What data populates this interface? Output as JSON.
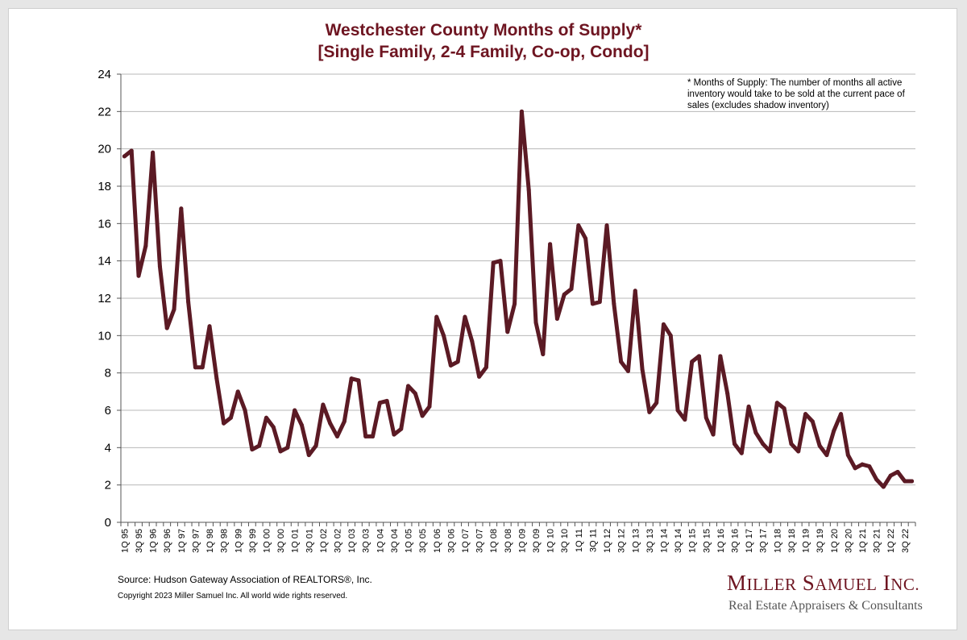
{
  "chart_data": {
    "type": "line",
    "title": "Westchester County Months of Supply*",
    "subtitle": "[Single Family, 2-4 Family, Co-op, Condo]",
    "xlabel": "",
    "ylabel": "",
    "ylim": [
      0,
      24
    ],
    "yticks": [
      0,
      2,
      4,
      6,
      8,
      10,
      12,
      14,
      16,
      18,
      20,
      22,
      24
    ],
    "grid": true,
    "legend": "none",
    "line_color": "#5b1a24",
    "tick_labels": [
      "1Q 95",
      "3Q 95",
      "1Q 96",
      "3Q 96",
      "1Q 97",
      "3Q 97",
      "1Q 98",
      "3Q 98",
      "1Q 99",
      "3Q 99",
      "1Q 00",
      "3Q 00",
      "1Q 01",
      "3Q 01",
      "1Q 02",
      "3Q 02",
      "1Q 03",
      "3Q 03",
      "1Q 04",
      "3Q 04",
      "1Q 05",
      "3Q 05",
      "1Q 06",
      "3Q 06",
      "1Q 07",
      "3Q 07",
      "1Q 08",
      "3Q 08",
      "1Q 09",
      "3Q 09",
      "1Q 10",
      "3Q 10",
      "1Q 11",
      "3Q 11",
      "1Q 12",
      "3Q 12",
      "1Q 13",
      "3Q 13",
      "1Q 14",
      "3Q 14",
      "1Q 15",
      "3Q 15",
      "1Q 16",
      "3Q 16",
      "1Q 17",
      "3Q 17",
      "1Q 18",
      "3Q 18",
      "1Q 19",
      "3Q 19",
      "1Q 20",
      "3Q 20",
      "1Q 21",
      "3Q 21",
      "1Q 22",
      "3Q 22"
    ],
    "categories": [
      "1Q 95",
      "2Q 95",
      "3Q 95",
      "4Q 95",
      "1Q 96",
      "2Q 96",
      "3Q 96",
      "4Q 96",
      "1Q 97",
      "2Q 97",
      "3Q 97",
      "4Q 97",
      "1Q 98",
      "2Q 98",
      "3Q 98",
      "4Q 98",
      "1Q 99",
      "2Q 99",
      "3Q 99",
      "4Q 99",
      "1Q 00",
      "2Q 00",
      "3Q 00",
      "4Q 00",
      "1Q 01",
      "2Q 01",
      "3Q 01",
      "4Q 01",
      "1Q 02",
      "2Q 02",
      "3Q 02",
      "4Q 02",
      "1Q 03",
      "2Q 03",
      "3Q 03",
      "4Q 03",
      "1Q 04",
      "2Q 04",
      "3Q 04",
      "4Q 04",
      "1Q 05",
      "2Q 05",
      "3Q 05",
      "4Q 05",
      "1Q 06",
      "2Q 06",
      "3Q 06",
      "4Q 06",
      "1Q 07",
      "2Q 07",
      "3Q 07",
      "4Q 07",
      "1Q 08",
      "2Q 08",
      "3Q 08",
      "4Q 08",
      "1Q 09",
      "2Q 09",
      "3Q 09",
      "4Q 09",
      "1Q 10",
      "2Q 10",
      "3Q 10",
      "4Q 10",
      "1Q 11",
      "2Q 11",
      "3Q 11",
      "4Q 11",
      "1Q 12",
      "2Q 12",
      "3Q 12",
      "4Q 12",
      "1Q 13",
      "2Q 13",
      "3Q 13",
      "4Q 13",
      "1Q 14",
      "2Q 14",
      "3Q 14",
      "4Q 14",
      "1Q 15",
      "2Q 15",
      "3Q 15",
      "4Q 15",
      "1Q 16",
      "2Q 16",
      "3Q 16",
      "4Q 16",
      "1Q 17",
      "2Q 17",
      "3Q 17",
      "4Q 17",
      "1Q 18",
      "2Q 18",
      "3Q 18",
      "4Q 18",
      "1Q 19",
      "2Q 19",
      "3Q 19",
      "4Q 19",
      "1Q 20",
      "2Q 20",
      "3Q 20",
      "4Q 20",
      "1Q 21",
      "2Q 21",
      "3Q 21",
      "4Q 21",
      "1Q 22",
      "2Q 22",
      "3Q 22",
      "4Q 22"
    ],
    "series": [
      {
        "values": [
          19.6,
          19.9,
          13.2,
          14.8,
          19.8,
          13.7,
          10.4,
          11.4,
          16.8,
          11.8,
          8.3,
          8.3,
          10.5,
          7.7,
          5.3,
          5.6,
          7.0,
          6.0,
          3.9,
          4.1,
          5.6,
          5.1,
          3.8,
          4.0,
          6.0,
          5.2,
          3.6,
          4.1,
          6.3,
          5.3,
          4.6,
          5.4,
          7.7,
          7.6,
          4.6,
          4.6,
          6.4,
          6.5,
          4.7,
          5.0,
          7.3,
          6.9,
          5.7,
          6.2,
          11.0,
          10.0,
          8.4,
          8.6,
          11.0,
          9.7,
          7.8,
          8.3,
          13.9,
          14.0,
          10.2,
          11.7,
          22.0,
          17.8,
          10.7,
          9.0,
          14.9,
          10.9,
          12.2,
          12.5,
          15.9,
          15.2,
          11.7,
          11.8,
          15.9,
          11.7,
          8.6,
          8.1,
          12.4,
          8.2,
          5.9,
          6.4,
          10.6,
          10.0,
          6.0,
          5.5,
          8.6,
          8.9,
          5.6,
          4.7,
          8.9,
          6.9,
          4.2,
          3.7,
          6.2,
          4.8,
          4.2,
          3.8,
          6.4,
          6.1,
          4.2,
          3.8,
          5.8,
          5.4,
          4.1,
          3.6,
          4.9,
          5.8,
          3.6,
          2.9,
          3.1,
          3.0,
          2.3,
          1.9,
          2.5,
          2.7,
          2.2,
          2.2
        ]
      }
    ]
  },
  "footnote": [
    "* Months of Supply: The number of months all active",
    "inventory would take to be sold at the current pace of",
    "sales (excludes shadow inventory)"
  ],
  "source": "Source: Hudson Gateway Association of REALTORS®, Inc.",
  "copyright": "Copyright 2023 Miller Samuel Inc.  All world wide rights reserved.",
  "logo": {
    "name": "Miller Samuel Inc.",
    "tagline": "Real Estate Appraisers & Consultants"
  }
}
